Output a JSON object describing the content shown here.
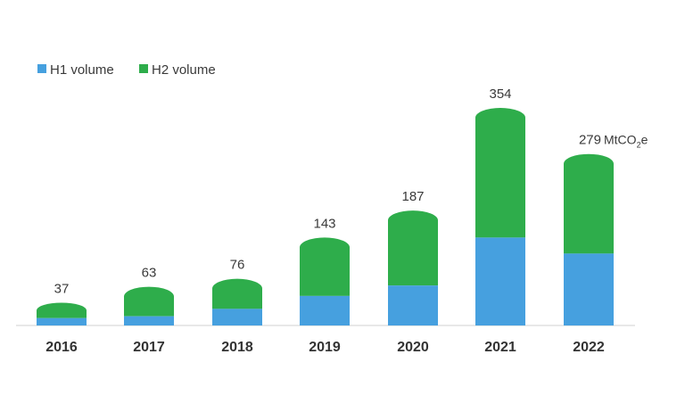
{
  "chart_data": {
    "type": "bar",
    "stacked": true,
    "categories": [
      "2016",
      "2017",
      "2018",
      "2019",
      "2020",
      "2021",
      "2022"
    ],
    "series": [
      {
        "name": "H1 volume",
        "color": "#46a0df",
        "values": [
          12,
          15,
          27,
          48,
          65,
          143,
          117
        ]
      },
      {
        "name": "H2 volume",
        "color": "#2ead4b",
        "values": [
          25,
          48,
          49,
          95,
          122,
          211,
          162
        ]
      }
    ],
    "totals": [
      37,
      63,
      76,
      143,
      187,
      354,
      279
    ],
    "unit": {
      "main": "MtCO",
      "sub": "2",
      "suffix": "e"
    },
    "title": "",
    "xlabel": "",
    "ylabel": "",
    "ylim": [
      0,
      354
    ],
    "legend_position": "top-left",
    "grid": false
  }
}
